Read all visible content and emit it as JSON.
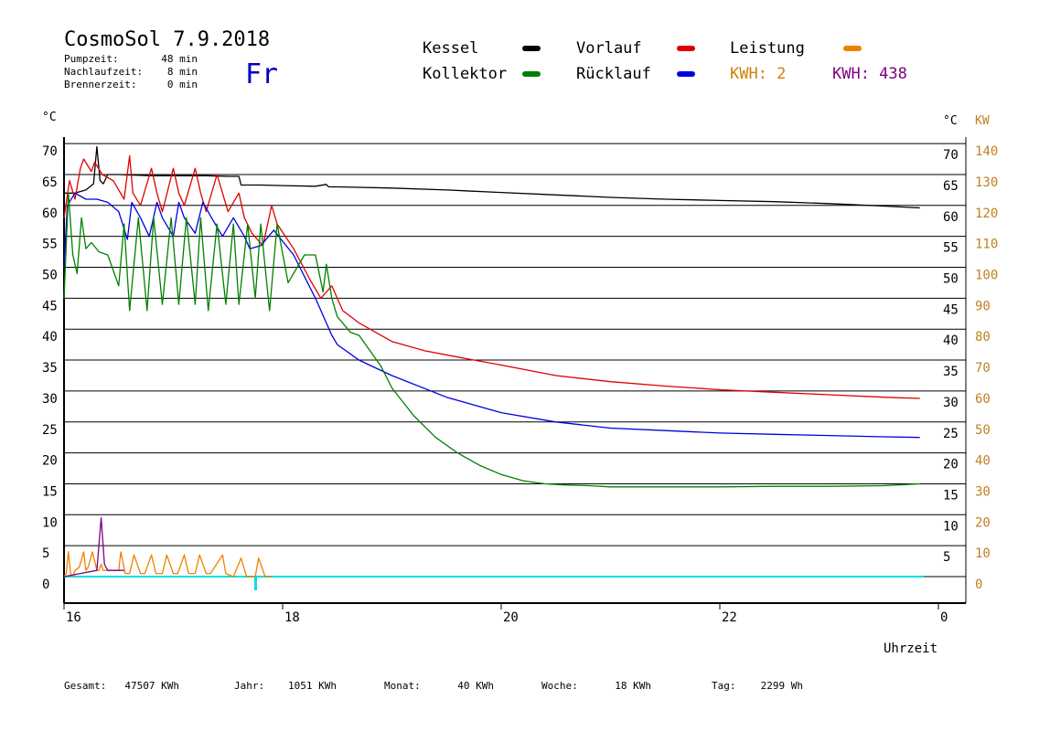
{
  "header": {
    "title": "CosmoSol 7.9.2018",
    "day": "Fr",
    "stats": [
      {
        "label": "Pumpzeit:",
        "value": "48 min"
      },
      {
        "label": "Nachlaufzeit:",
        "value": "8 min"
      },
      {
        "label": "Brennerzeit:",
        "value": "0 min"
      }
    ]
  },
  "legend": [
    {
      "label": "Kessel",
      "color": "#000000"
    },
    {
      "label": "Vorlauf",
      "color": "#e00000"
    },
    {
      "label": "Leistung",
      "color": "#f08000"
    },
    {
      "label": "Kollektor",
      "color": "#008000"
    },
    {
      "label": "Rücklauf",
      "color": "#0000e0"
    }
  ],
  "kwh": [
    {
      "label": "KWH: 2",
      "color": "#d08000"
    },
    {
      "label": "KWH: 438",
      "color": "#800080"
    }
  ],
  "colors": {
    "day": "#0000c0",
    "kw_axis": "#c08020",
    "zero_line": "#00e0e0",
    "grid": "#000000"
  },
  "footer": [
    {
      "label": "Gesamt:",
      "value": "47507 KWh"
    },
    {
      "label": "Jahr:",
      "value": "1051 KWh"
    },
    {
      "label": "Monat:",
      "value": "40 KWh"
    },
    {
      "label": "Woche:",
      "value": "18 KWh"
    },
    {
      "label": "Tag:",
      "value": "2299 Wh"
    }
  ],
  "chart_data": {
    "type": "line",
    "xlabel": "Uhrzeit",
    "x_ticks": [
      "16",
      "18",
      "20",
      "22",
      "0"
    ],
    "xlim": [
      16,
      24
    ],
    "ylabel_left": "°C",
    "ylabel_right": "°C",
    "ylabel_kw": "KW",
    "ylim": [
      0,
      70
    ],
    "y_ticks_left": [
      0,
      5,
      10,
      15,
      20,
      25,
      30,
      35,
      40,
      45,
      50,
      55,
      60,
      65,
      70
    ],
    "y_ticks_right": [
      5,
      10,
      15,
      20,
      25,
      30,
      35,
      40,
      45,
      50,
      55,
      60,
      65,
      70
    ],
    "y_ticks_kw": [
      0,
      10,
      20,
      30,
      40,
      50,
      60,
      70,
      80,
      90,
      100,
      110,
      120,
      130,
      140
    ],
    "grid": true,
    "series": [
      {
        "name": "Kessel",
        "color": "#000000",
        "x": [
          16.0,
          16.1,
          16.2,
          16.27,
          16.3,
          16.33,
          16.36,
          16.4,
          16.5,
          16.8,
          17.0,
          17.3,
          17.5,
          17.6,
          17.62,
          17.8,
          18.0,
          18.3,
          18.4,
          18.42,
          18.5,
          19.0,
          19.5,
          20.0,
          20.5,
          21.0,
          21.5,
          22.0,
          22.5,
          23.0,
          23.5,
          23.83
        ],
        "values": [
          62.0,
          62.0,
          62.5,
          63.5,
          69.5,
          64.0,
          63.5,
          65.0,
          65.0,
          64.8,
          64.8,
          64.8,
          64.7,
          64.7,
          63.3,
          63.3,
          63.2,
          63.1,
          63.4,
          63.0,
          63.0,
          62.8,
          62.5,
          62.1,
          61.7,
          61.3,
          61.0,
          60.8,
          60.6,
          60.3,
          59.9,
          59.6
        ]
      },
      {
        "name": "Vorlauf",
        "color": "#e00000",
        "x": [
          16.0,
          16.05,
          16.1,
          16.15,
          16.18,
          16.25,
          16.28,
          16.35,
          16.45,
          16.55,
          16.6,
          16.63,
          16.7,
          16.8,
          16.85,
          16.9,
          17.0,
          17.05,
          17.1,
          17.2,
          17.25,
          17.3,
          17.4,
          17.45,
          17.5,
          17.6,
          17.65,
          17.72,
          17.82,
          17.9,
          17.95,
          18.1,
          18.25,
          18.35,
          18.45,
          18.55,
          18.7,
          19.0,
          19.3,
          19.6,
          20.0,
          20.5,
          21.0,
          21.5,
          22.0,
          22.5,
          23.0,
          23.5,
          23.83
        ],
        "values": [
          58.0,
          64.0,
          61.0,
          66.0,
          67.5,
          65.5,
          67.0,
          65.0,
          64.0,
          61.0,
          68.0,
          62.0,
          60.0,
          66.0,
          62.0,
          59.0,
          66.0,
          62.0,
          60.0,
          66.0,
          62.0,
          59.0,
          65.0,
          62.0,
          59.0,
          62.0,
          58.0,
          55.5,
          53.5,
          60.0,
          57.0,
          53.0,
          48.0,
          45.0,
          47.0,
          43.0,
          41.0,
          38.0,
          36.5,
          35.5,
          34.2,
          32.5,
          31.5,
          30.8,
          30.2,
          29.8,
          29.4,
          29.0,
          28.8
        ]
      },
      {
        "name": "Rücklauf",
        "color": "#0000e0",
        "x": [
          16.0,
          16.03,
          16.1,
          16.2,
          16.3,
          16.4,
          16.5,
          16.58,
          16.62,
          16.7,
          16.78,
          16.85,
          16.9,
          17.0,
          17.05,
          17.1,
          17.2,
          17.27,
          17.35,
          17.45,
          17.55,
          17.65,
          17.7,
          17.8,
          17.92,
          18.1,
          18.3,
          18.45,
          18.5,
          18.7,
          19.0,
          19.5,
          20.0,
          20.5,
          21.0,
          21.5,
          22.0,
          22.5,
          23.0,
          23.5,
          23.83
        ],
        "values": [
          50.0,
          60.0,
          62.0,
          61.0,
          61.0,
          60.5,
          59.0,
          54.5,
          60.5,
          58.0,
          55.0,
          60.5,
          58.0,
          55.0,
          60.5,
          58.0,
          55.5,
          60.5,
          58.0,
          55.0,
          58.0,
          55.0,
          53.0,
          53.5,
          56.0,
          52.0,
          45.0,
          39.0,
          37.5,
          35.0,
          32.5,
          29.0,
          26.5,
          25.0,
          24.0,
          23.6,
          23.2,
          23.0,
          22.8,
          22.6,
          22.5
        ]
      },
      {
        "name": "Kollektor",
        "color": "#008000",
        "x": [
          16.0,
          16.04,
          16.08,
          16.12,
          16.16,
          16.2,
          16.25,
          16.32,
          16.4,
          16.5,
          16.55,
          16.6,
          16.68,
          16.76,
          16.82,
          16.9,
          16.98,
          17.05,
          17.12,
          17.2,
          17.25,
          17.32,
          17.4,
          17.48,
          17.55,
          17.6,
          17.68,
          17.75,
          17.8,
          17.88,
          17.95,
          18.05,
          18.2,
          18.3,
          18.37,
          18.4,
          18.45,
          18.5,
          18.55,
          18.62,
          18.7,
          18.8,
          18.9,
          19.0,
          19.2,
          19.4,
          19.6,
          19.8,
          20.0,
          20.2,
          20.4,
          20.6,
          20.8,
          21.0,
          21.5,
          22.0,
          22.5,
          23.0,
          23.5,
          23.83
        ],
        "values": [
          45.0,
          62.0,
          52.0,
          49.0,
          58.0,
          53.0,
          54.0,
          52.5,
          52.0,
          47.0,
          57.0,
          43.0,
          58.0,
          43.0,
          58.0,
          44.0,
          58.0,
          44.0,
          58.0,
          44.0,
          58.0,
          43.0,
          57.0,
          44.0,
          57.0,
          44.0,
          57.0,
          45.0,
          57.0,
          43.0,
          57.0,
          47.5,
          52.0,
          52.0,
          46.0,
          50.5,
          45.0,
          42.0,
          41.0,
          39.5,
          39.0,
          36.5,
          34.0,
          30.5,
          26.0,
          22.5,
          20.0,
          18.0,
          16.5,
          15.5,
          15.0,
          14.8,
          14.7,
          14.5,
          14.5,
          14.5,
          14.6,
          14.6,
          14.7,
          15.0
        ]
      },
      {
        "name": "Leistung",
        "color": "#f08000",
        "x": [
          16.0,
          16.02,
          16.04,
          16.06,
          16.08,
          16.1,
          16.14,
          16.18,
          16.2,
          16.22,
          16.26,
          16.3,
          16.32,
          16.34,
          16.36,
          16.4,
          16.5,
          16.52,
          16.56,
          16.6,
          16.64,
          16.7,
          16.74,
          16.8,
          16.84,
          16.9,
          16.94,
          17.0,
          17.04,
          17.1,
          17.14,
          17.2,
          17.24,
          17.3,
          17.34,
          17.45,
          17.48,
          17.55,
          17.62,
          17.67,
          17.75,
          17.78,
          17.84,
          17.9
        ],
        "values": [
          0.0,
          0.5,
          4.0,
          0.5,
          0.0,
          1.0,
          1.5,
          4.0,
          1.0,
          1.5,
          4.0,
          1.0,
          1.0,
          2.0,
          1.0,
          1.0,
          1.0,
          4.0,
          0.5,
          0.5,
          3.5,
          0.5,
          0.5,
          3.5,
          0.5,
          0.5,
          3.5,
          0.5,
          0.5,
          3.5,
          0.5,
          0.5,
          3.5,
          0.5,
          0.5,
          3.5,
          0.5,
          0.0,
          3.0,
          0.0,
          0.0,
          3.0,
          0.0,
          0.0
        ]
      },
      {
        "name": "KWH",
        "color": "#800080",
        "x": [
          16.0,
          16.15,
          16.3,
          16.34,
          16.37,
          16.4,
          16.5,
          16.55
        ],
        "values": [
          0.0,
          0.5,
          1.0,
          9.5,
          2.0,
          1.0,
          1.0,
          1.0
        ]
      }
    ]
  }
}
